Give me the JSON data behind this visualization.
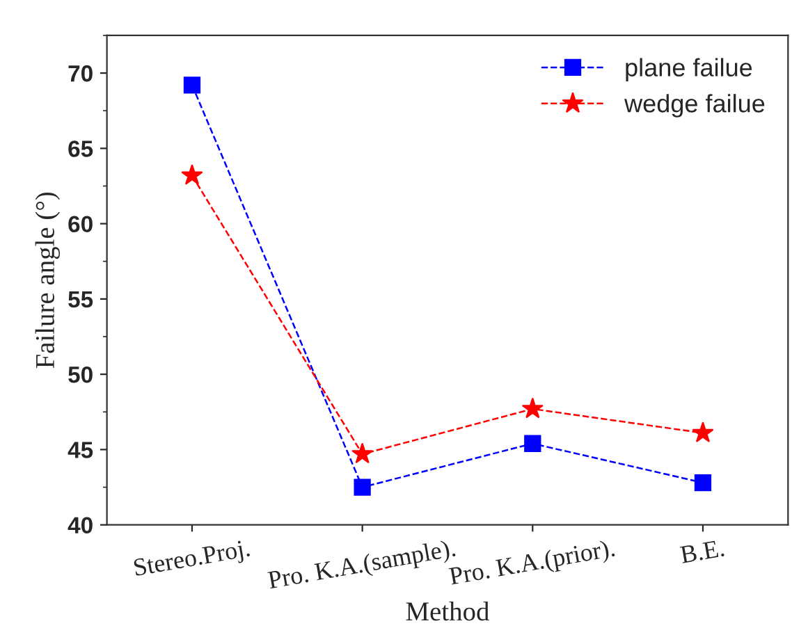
{
  "chart_data": {
    "type": "line",
    "xlabel": "Method",
    "ylabel": "Failure angle (°)",
    "categories": [
      "Stereo.Proj.",
      "Pro. K.A.(sample).",
      "Pro. K.A.(prior).",
      "B.E."
    ],
    "series": [
      {
        "name": "plane failue",
        "color": "#0000ff",
        "marker": "square",
        "values": [
          69.2,
          42.5,
          45.4,
          42.8
        ]
      },
      {
        "name": "wedge failue",
        "color": "#ff0000",
        "marker": "star",
        "values": [
          63.2,
          44.7,
          47.7,
          46.1
        ]
      }
    ],
    "ylim": [
      40,
      72.5
    ],
    "yticks": [
      40,
      45,
      50,
      55,
      60,
      65,
      70
    ],
    "line_style": "dashed",
    "legend": "top right",
    "grid": false
  }
}
